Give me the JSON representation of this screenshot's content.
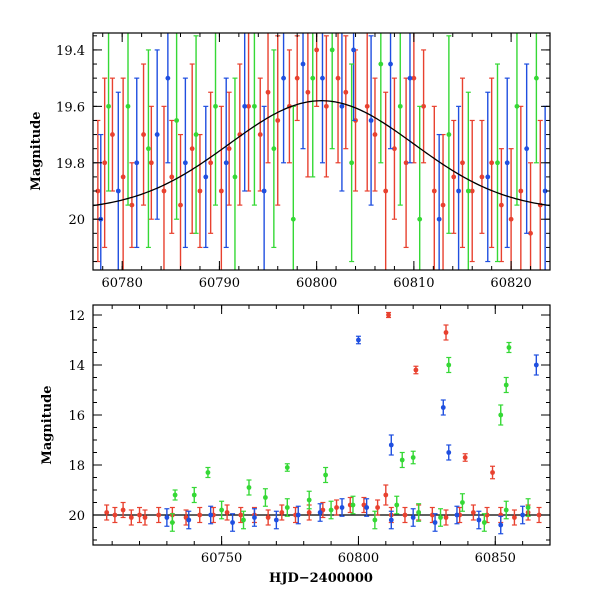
{
  "chart_data": [
    {
      "type": "scatter",
      "panel": "top",
      "title": "",
      "xlabel": "",
      "ylabel": "Magnitude",
      "xlim": [
        60777,
        60824
      ],
      "ylim": [
        19.34,
        20.18
      ],
      "y_inverted": true,
      "xticks": [
        60780,
        60790,
        60800,
        60810,
        60820
      ],
      "yticks": [
        19.4,
        19.6,
        19.8,
        20
      ],
      "ytick_labels": [
        "19.4",
        "19.6",
        "19.8",
        "20"
      ],
      "grid": false,
      "model_curve": {
        "name": "",
        "color": "#000000",
        "peak_x": 60800.5,
        "baseline_mag": 19.97,
        "peak_mag": 19.58,
        "width_days": 9.5
      },
      "series": [
        {
          "color": "#e8412f",
          "points": [
            [
              60777.5,
              19.9,
              0.25
            ],
            [
              60778.2,
              19.8,
              0.3
            ],
            [
              60779,
              19.7,
              0.2
            ],
            [
              60780.1,
              19.85,
              0.35
            ],
            [
              60781,
              19.95,
              0.15
            ],
            [
              60782.2,
              19.7,
              0.25
            ],
            [
              60783,
              19.8,
              0.2
            ],
            [
              60784.3,
              19.9,
              0.3
            ],
            [
              60785.1,
              19.85,
              0.2
            ],
            [
              60786,
              19.95,
              0.25
            ],
            [
              60787.2,
              19.75,
              0.3
            ],
            [
              60788,
              19.9,
              0.2
            ],
            [
              60789.1,
              19.8,
              0.25
            ],
            [
              60790.2,
              19.9,
              0.3
            ],
            [
              60791,
              19.75,
              0.2
            ],
            [
              60792.1,
              19.7,
              0.25
            ],
            [
              60793,
              19.6,
              0.3
            ],
            [
              60794.2,
              19.7,
              0.2
            ],
            [
              60795,
              19.55,
              0.25
            ],
            [
              60796,
              19.65,
              0.3
            ],
            [
              60797.2,
              19.6,
              0.2
            ],
            [
              60798,
              19.5,
              0.15
            ],
            [
              60799.1,
              19.55,
              0.3
            ],
            [
              60800,
              19.4,
              0.2
            ],
            [
              60801,
              19.6,
              0.25
            ],
            [
              60802.2,
              19.5,
              0.3
            ],
            [
              60803,
              19.55,
              0.2
            ],
            [
              60804,
              19.65,
              0.25
            ],
            [
              60805.2,
              19.6,
              0.3
            ],
            [
              60806,
              19.7,
              0.2
            ],
            [
              60807.1,
              19.9,
              0.35
            ],
            [
              60808,
              19.75,
              0.25
            ],
            [
              60809.2,
              19.8,
              0.3
            ],
            [
              60810,
              19.5,
              0.3
            ],
            [
              60811,
              19.6,
              0.2
            ],
            [
              60812.1,
              19.9,
              0.3
            ],
            [
              60813,
              19.95,
              0.25
            ],
            [
              60814.1,
              19.85,
              0.2
            ],
            [
              60815,
              19.8,
              0.3
            ],
            [
              60816,
              19.9,
              0.25
            ],
            [
              60817,
              19.85,
              0.2
            ],
            [
              60818,
              19.8,
              0.3
            ],
            [
              60819,
              19.95,
              0.2
            ],
            [
              60820,
              20.0,
              0.25
            ],
            [
              60821,
              19.9,
              0.3
            ],
            [
              60822,
              20.05,
              0.25
            ],
            [
              60823,
              19.95,
              0.3
            ]
          ]
        },
        {
          "color": "#1f4fe0",
          "points": [
            [
              60777.8,
              20.0,
              0.3
            ],
            [
              60779.6,
              19.9,
              0.35
            ],
            [
              60781.5,
              19.8,
              0.3
            ],
            [
              60783.6,
              19.7,
              0.3
            ],
            [
              60784.7,
              19.5,
              0.3
            ],
            [
              60786.5,
              19.8,
              0.3
            ],
            [
              60788.6,
              19.85,
              0.25
            ],
            [
              60790.7,
              19.8,
              0.3
            ],
            [
              60792.6,
              19.6,
              0.3
            ],
            [
              60794.6,
              19.9,
              0.3
            ],
            [
              60796.6,
              19.5,
              0.3
            ],
            [
              60798.6,
              19.45,
              0.3
            ],
            [
              60800.6,
              19.5,
              0.3
            ],
            [
              60802.6,
              19.6,
              0.3
            ],
            [
              60803.8,
              19.4,
              0.25
            ],
            [
              60805.6,
              19.65,
              0.3
            ],
            [
              60807.6,
              19.45,
              0.3
            ],
            [
              60809.6,
              19.5,
              0.3
            ],
            [
              60812.6,
              20.0,
              0.3
            ],
            [
              60814.6,
              19.9,
              0.3
            ],
            [
              60817.6,
              19.85,
              0.3
            ],
            [
              60819.6,
              19.8,
              0.3
            ],
            [
              60821.6,
              19.75,
              0.3
            ],
            [
              60823.5,
              19.9,
              0.3
            ]
          ]
        },
        {
          "color": "#35d835",
          "points": [
            [
              60778.6,
              19.6,
              0.3
            ],
            [
              60780.6,
              19.6,
              0.35
            ],
            [
              60782.7,
              19.75,
              0.35
            ],
            [
              60785.6,
              19.65,
              0.35
            ],
            [
              60787.6,
              19.7,
              0.35
            ],
            [
              60789.6,
              19.6,
              0.35
            ],
            [
              60791.6,
              19.85,
              0.35
            ],
            [
              60793.6,
              19.6,
              0.35
            ],
            [
              60795.6,
              19.75,
              0.35
            ],
            [
              60797.6,
              20.0,
              0.4
            ],
            [
              60799.6,
              19.5,
              0.35
            ],
            [
              60801.6,
              19.4,
              0.35
            ],
            [
              60803.6,
              19.8,
              0.35
            ],
            [
              60806.6,
              19.45,
              0.35
            ],
            [
              60808.6,
              19.6,
              0.35
            ],
            [
              60810.6,
              20.0,
              0.4
            ],
            [
              60813.6,
              19.7,
              0.35
            ],
            [
              60815.6,
              19.9,
              0.35
            ],
            [
              60818.6,
              19.8,
              0.35
            ],
            [
              60820.6,
              19.6,
              0.35
            ],
            [
              60822.6,
              19.5,
              0.3
            ]
          ]
        }
      ]
    },
    {
      "type": "scatter",
      "panel": "bottom",
      "title": "",
      "xlabel": "HJD−2400000",
      "ylabel": "Magnitude",
      "xlim": [
        60703,
        60870
      ],
      "ylim": [
        11.6,
        21.2
      ],
      "y_inverted": true,
      "xticks": [
        60750,
        60800,
        60850
      ],
      "yticks": [
        12,
        14,
        16,
        18,
        20
      ],
      "grid": false,
      "reference_line": {
        "y": 20.0,
        "color": "#000000"
      },
      "series": [
        {
          "color": "#e8412f",
          "points": [
            [
              60708,
              19.9,
              0.3
            ],
            [
              60711,
              20.0,
              0.3
            ],
            [
              60714,
              19.8,
              0.3
            ],
            [
              60717,
              20.1,
              0.3
            ],
            [
              60720,
              20.0,
              0.3
            ],
            [
              60722,
              20.1,
              0.3
            ],
            [
              60727,
              20.0,
              0.3
            ],
            [
              60732,
              20.0,
              0.3
            ],
            [
              60737,
              20.1,
              0.3
            ],
            [
              60742,
              20.0,
              0.3
            ],
            [
              60747,
              20.0,
              0.3
            ],
            [
              60752,
              19.9,
              0.3
            ],
            [
              60757,
              20.0,
              0.3
            ],
            [
              60762,
              20.0,
              0.3
            ],
            [
              60767,
              20.1,
              0.3
            ],
            [
              60772,
              19.9,
              0.3
            ],
            [
              60777,
              20.0,
              0.3
            ],
            [
              60782,
              19.9,
              0.3
            ],
            [
              60787,
              19.8,
              0.3
            ],
            [
              60792,
              19.7,
              0.3
            ],
            [
              60797,
              19.6,
              0.3
            ],
            [
              60802,
              19.6,
              0.3
            ],
            [
              60807,
              19.7,
              0.3
            ],
            [
              60810,
              19.2,
              0.4
            ],
            [
              60812,
              20.0,
              0.3
            ],
            [
              60817,
              20.0,
              0.3
            ],
            [
              60822,
              19.9,
              0.3
            ],
            [
              60827,
              20.0,
              0.3
            ],
            [
              60832,
              20.1,
              0.3
            ],
            [
              60837,
              20.0,
              0.3
            ],
            [
              60842,
              19.9,
              0.3
            ],
            [
              60847,
              20.0,
              0.3
            ],
            [
              60852,
              20.0,
              0.3
            ],
            [
              60857,
              20.1,
              0.3
            ],
            [
              60862,
              19.9,
              0.3
            ],
            [
              60866,
              20.0,
              0.3
            ],
            [
              60811,
              12.0,
              0.1
            ],
            [
              60821,
              14.2,
              0.15
            ],
            [
              60832,
              12.7,
              0.3
            ],
            [
              60839,
              17.7,
              0.15
            ],
            [
              60849,
              18.3,
              0.25
            ]
          ]
        },
        {
          "color": "#1f4fe0",
          "points": [
            [
              60730,
              20.1,
              0.35
            ],
            [
              60738,
              20.2,
              0.35
            ],
            [
              60746,
              20.0,
              0.35
            ],
            [
              60754,
              20.3,
              0.35
            ],
            [
              60762,
              20.1,
              0.35
            ],
            [
              60770,
              20.2,
              0.35
            ],
            [
              60778,
              20.0,
              0.35
            ],
            [
              60786,
              19.9,
              0.35
            ],
            [
              60794,
              19.7,
              0.35
            ],
            [
              60803,
              19.7,
              0.35
            ],
            [
              60812,
              20.2,
              0.35
            ],
            [
              60820,
              20.1,
              0.35
            ],
            [
              60828,
              20.3,
              0.35
            ],
            [
              60836,
              20.0,
              0.35
            ],
            [
              60844,
              20.2,
              0.35
            ],
            [
              60852,
              20.4,
              0.35
            ],
            [
              60860,
              20.0,
              0.35
            ],
            [
              60800,
              13.0,
              0.15
            ],
            [
              60831,
              15.7,
              0.3
            ],
            [
              60833,
              17.5,
              0.3
            ],
            [
              60812,
              17.2,
              0.4
            ],
            [
              60865,
              14.0,
              0.4
            ]
          ]
        },
        {
          "color": "#35d835",
          "points": [
            [
              60732,
              20.3,
              0.35
            ],
            [
              60740,
              19.2,
              0.3
            ],
            [
              60750,
              19.8,
              0.35
            ],
            [
              60758,
              20.2,
              0.35
            ],
            [
              60766,
              19.3,
              0.35
            ],
            [
              60774,
              19.7,
              0.35
            ],
            [
              60782,
              19.4,
              0.35
            ],
            [
              60790,
              19.8,
              0.35
            ],
            [
              60798,
              19.6,
              0.35
            ],
            [
              60806,
              20.2,
              0.35
            ],
            [
              60814,
              19.6,
              0.35
            ],
            [
              60822,
              19.9,
              0.35
            ],
            [
              60830,
              20.1,
              0.35
            ],
            [
              60838,
              19.5,
              0.35
            ],
            [
              60846,
              20.3,
              0.35
            ],
            [
              60854,
              19.8,
              0.35
            ],
            [
              60862,
              19.7,
              0.35
            ],
            [
              60733,
              19.2,
              0.2
            ],
            [
              60745,
              18.3,
              0.2
            ],
            [
              60760,
              18.9,
              0.3
            ],
            [
              60774,
              18.1,
              0.15
            ],
            [
              60788,
              18.4,
              0.3
            ],
            [
              60820,
              17.7,
              0.25
            ],
            [
              60833,
              14.0,
              0.3
            ],
            [
              60852,
              16.0,
              0.4
            ],
            [
              60855,
              13.3,
              0.2
            ],
            [
              60854,
              14.8,
              0.3
            ],
            [
              60816,
              17.8,
              0.3
            ]
          ]
        }
      ]
    }
  ]
}
